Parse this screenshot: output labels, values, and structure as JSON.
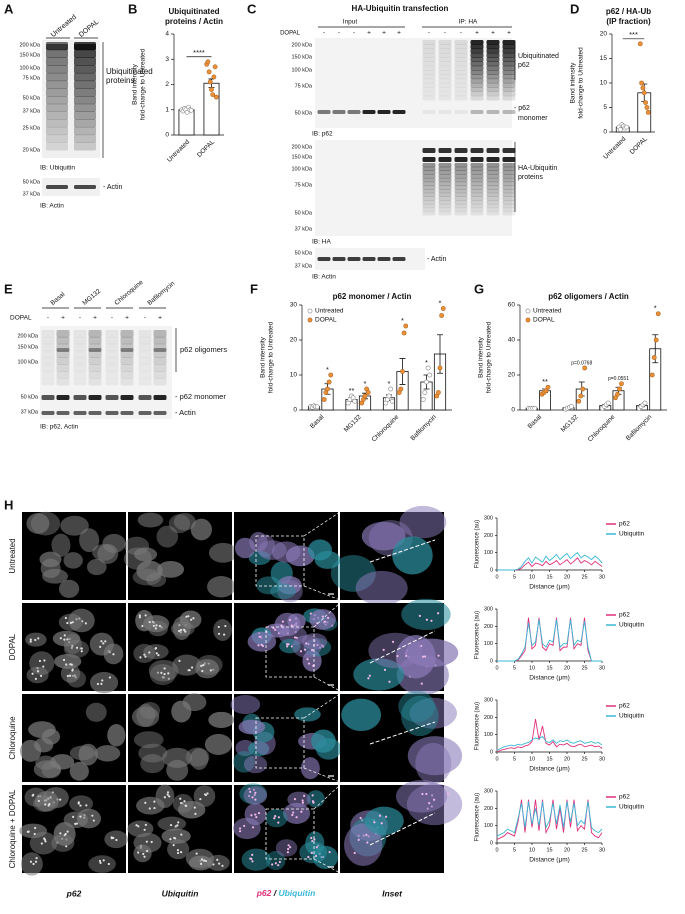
{
  "panels": {
    "A": {
      "letter": "A",
      "lanes": [
        "Untreated",
        "DOPAL"
      ],
      "kda": [
        "200 kDa",
        "150 kDa",
        "100 kDa",
        "75 kDa",
        "50 kDa",
        "37 kDa",
        "25 kDa",
        "20 kDa"
      ],
      "label": [
        "Ubiquitinated",
        "proteins"
      ],
      "ib": "IB: Ubiquitin",
      "actin_kda": [
        "50 kDa",
        "37 kDa"
      ],
      "actin": "- Actin",
      "actin_ib": "IB: Actin"
    },
    "C": {
      "letter": "C",
      "title": "HA-Ubiquitin transfection",
      "input": "Input",
      "ip": "IP: HA",
      "dopal": "DOPAL",
      "signs": [
        "-",
        "-",
        "-",
        "+",
        "+",
        "+",
        "-",
        "-",
        "-",
        "+",
        "+",
        "+"
      ],
      "kda1": [
        "200 kDa",
        "150 kDa",
        "100 kDa",
        "75 kDa",
        "50 kDa"
      ],
      "label1": [
        "Ubiquitinated",
        "p62"
      ],
      "monomer": [
        "- p62",
        "monomer"
      ],
      "ib1": "IB: p62",
      "kda2": [
        "200 kDa",
        "150 kDa",
        "100 kDa",
        "75 kDa",
        "50 kDa",
        "37 kDa"
      ],
      "label2": [
        "HA-Ubiquitin",
        "proteins"
      ],
      "ib2": "IB: HA",
      "kda3": [
        "50 kDa",
        "37 kDa"
      ],
      "actin": "- Actin",
      "ib3": "IB: Actin"
    },
    "E": {
      "letter": "E",
      "groups": [
        "Basal",
        "MG132",
        "Chloroquine",
        "Bafilomycin"
      ],
      "dopal": "DOPAL",
      "signs": [
        "-",
        "+",
        "-",
        "+",
        "-",
        "+",
        "-",
        "+"
      ],
      "kda": [
        "200 kDa",
        "150 kDa",
        "100 kDa",
        "50 kDa",
        "37 kDa"
      ],
      "oligomers": "p62 oligomers",
      "monomer": "- p62 monomer",
      "actin": "- Actin",
      "ib": "IB: p62, Actin"
    },
    "H": {
      "letter": "H",
      "rows": [
        "Untreated",
        "DOPAL",
        "Chloroquine",
        "Chloroquine + DOPAL"
      ],
      "columns": [
        "p62",
        "Ubiquitin"
      ],
      "merge": [
        "p62",
        "/",
        "Ubiquitin"
      ],
      "inset": "Inset"
    }
  },
  "chart_data": [
    {
      "type": "bar",
      "panel": "B",
      "title": [
        "Ubiquitinated",
        "proteins / Actin"
      ],
      "ylabel": [
        "Band intensity",
        "fold-change to Untreated"
      ],
      "categories": [
        "Untreated",
        "DOPAL"
      ],
      "values": [
        1,
        2.05
      ],
      "errors": [
        0.03,
        0.17
      ],
      "points": [
        [
          1,
          0.95,
          1.05,
          1.0,
          0.9,
          1.1,
          1.0,
          0.98
        ],
        [
          2.8,
          2.9,
          2.5,
          2.1,
          1.8,
          1.6,
          2.3,
          2.7,
          1.5
        ]
      ],
      "point_colors": [
        "#ffffff",
        "#e8913a"
      ],
      "bar_color": "#ffffff",
      "significance": "****",
      "ylim": [
        0,
        4
      ],
      "yticks": [
        0,
        1,
        2,
        3,
        4
      ]
    },
    {
      "type": "bar",
      "panel": "D",
      "title": [
        "p62 / HA-Ub",
        "(IP fraction)"
      ],
      "ylabel": [
        "Band intensity",
        "fold-change to Untreated"
      ],
      "categories": [
        "Untreated",
        "DOPAL"
      ],
      "values": [
        1,
        8
      ],
      "errors": [
        0.2,
        1.8
      ],
      "points": [
        [
          1,
          0.5,
          1.5,
          1.2,
          0.8,
          1.0
        ],
        [
          18,
          10,
          9,
          8,
          6,
          5,
          4
        ]
      ],
      "point_colors": [
        "#ffffff",
        "#e8913a"
      ],
      "bar_color": "#ffffff",
      "significance": "***",
      "ylim": [
        0,
        20
      ],
      "yticks": [
        0,
        5,
        10,
        15,
        20
      ]
    },
    {
      "type": "bar",
      "panel": "F",
      "title": "p62 monomer / Actin",
      "ylabel": [
        "Band intensity",
        "fold-change to Untreated"
      ],
      "categories": [
        "Basal",
        "MG132",
        "Chloroquine",
        "Bafilomycin"
      ],
      "bar_color": "#ffffff",
      "legend": "upper left",
      "ylim": [
        0,
        30
      ],
      "yticks": [
        0,
        10,
        20,
        30
      ],
      "series": [
        {
          "name": "Untreated",
          "color": "#ffffff",
          "values": [
            1,
            3,
            3.5,
            8
          ],
          "errors": [
            0.1,
            0.5,
            0.8,
            2
          ],
          "points": [
            [
              1,
              0.8,
              1.2,
              1,
              0.9
            ],
            [
              2,
              3,
              4,
              3.5,
              2.5
            ],
            [
              2,
              3,
              4,
              6,
              2.5
            ],
            [
              3,
              5,
              8,
              12,
              10
            ]
          ],
          "annotations": [
            null,
            "**",
            "*",
            "*"
          ]
        },
        {
          "name": "DOPAL",
          "color": "#e8913a",
          "values": [
            6,
            4,
            11,
            16
          ],
          "errors": [
            1.5,
            0.8,
            3.7,
            5.5
          ],
          "points": [
            [
              3,
              5,
              6,
              8,
              10
            ],
            [
              2,
              3,
              4,
              6,
              5
            ],
            [
              5,
              6,
              11,
              22,
              24
            ],
            [
              4,
              5,
              12,
              27,
              29
            ]
          ],
          "annotations": [
            "*",
            "*",
            "*",
            "*"
          ]
        }
      ]
    },
    {
      "type": "bar",
      "panel": "G",
      "title": "p62 oligomers / Actin",
      "ylabel": [
        "Band intensity",
        "fold-change to Untreated"
      ],
      "categories": [
        "Basal",
        "MG132",
        "Chloroquine",
        "Bafilomycin"
      ],
      "bar_color": "#ffffff",
      "legend": "upper left",
      "ylim": [
        0,
        60
      ],
      "yticks": [
        0,
        20,
        40,
        60
      ],
      "series": [
        {
          "name": "Untreated",
          "color": "#ffffff",
          "values": [
            1,
            1.3,
            2.5,
            2.5
          ],
          "errors": [
            0.1,
            0.3,
            0.7,
            0.6
          ],
          "points": [
            [
              1,
              1,
              1,
              1
            ],
            [
              0.5,
              1,
              1.5,
              2
            ],
            [
              1,
              2,
              3,
              4
            ],
            [
              1,
              2,
              3,
              4
            ]
          ]
        },
        {
          "name": "DOPAL",
          "color": "#e8913a",
          "values": [
            11,
            12,
            11,
            35
          ],
          "errors": [
            1,
            4,
            2,
            8
          ],
          "points": [
            [
              9,
              10,
              11,
              13
            ],
            [
              5,
              8,
              12,
              24
            ],
            [
              7,
              9,
              12,
              15
            ],
            [
              20,
              30,
              40,
              55
            ]
          ],
          "annotations": [
            "**",
            "p=0.0768",
            "p=0.0551",
            "*"
          ]
        }
      ]
    },
    {
      "type": "line",
      "xlabel": "Distance (μm)",
      "ylabel": "Fluorescence (au)",
      "legend": "upper right",
      "xlim": [
        0,
        30
      ],
      "xticks": [
        0,
        5,
        10,
        15,
        20,
        25,
        30
      ],
      "ylim": [
        0,
        300
      ],
      "yticks": [
        0,
        100,
        200,
        300
      ],
      "x": [
        0,
        1,
        2,
        3,
        4,
        5,
        6,
        7,
        8,
        9,
        10,
        11,
        12,
        13,
        14,
        15,
        16,
        17,
        18,
        19,
        20,
        21,
        22,
        23,
        24,
        25,
        26,
        27,
        28,
        29,
        30
      ],
      "series": [
        {
          "name": "p62",
          "color": "#e0307a",
          "values": [
            0,
            0,
            0,
            0,
            0,
            0,
            2,
            10,
            30,
            45,
            20,
            40,
            35,
            25,
            50,
            30,
            40,
            55,
            30,
            45,
            60,
            35,
            50,
            70,
            40,
            55,
            45,
            30,
            50,
            35,
            20
          ]
        },
        {
          "name": "Ubiquitin",
          "color": "#3ab7d6",
          "values": [
            0,
            0,
            0,
            0,
            0,
            0,
            5,
            20,
            50,
            70,
            40,
            75,
            60,
            45,
            80,
            55,
            70,
            90,
            60,
            80,
            95,
            65,
            85,
            100,
            70,
            85,
            75,
            60,
            80,
            65,
            40
          ]
        }
      ]
    },
    {
      "type": "line",
      "xlabel": "Distance (μm)",
      "ylabel": "Fluorescence (au)",
      "legend": "upper right",
      "xlim": [
        0,
        30
      ],
      "xticks": [
        0,
        5,
        10,
        15,
        20,
        25,
        30
      ],
      "ylim": [
        0,
        300
      ],
      "yticks": [
        0,
        100,
        200,
        300
      ],
      "x": [
        0,
        1,
        2,
        3,
        4,
        5,
        6,
        7,
        8,
        9,
        10,
        11,
        12,
        13,
        14,
        15,
        16,
        17,
        18,
        19,
        20,
        21,
        22,
        23,
        24,
        25,
        26,
        27,
        28,
        29,
        30
      ],
      "series": [
        {
          "name": "p62",
          "color": "#e0307a",
          "values": [
            0,
            0,
            0,
            0,
            0,
            0,
            5,
            30,
            60,
            250,
            70,
            90,
            250,
            80,
            60,
            100,
            90,
            250,
            60,
            80,
            80,
            250,
            70,
            100,
            90,
            250,
            60,
            0,
            0,
            0,
            0
          ]
        },
        {
          "name": "Ubiquitin",
          "color": "#3ab7d6",
          "values": [
            0,
            0,
            0,
            0,
            0,
            0,
            10,
            40,
            80,
            220,
            90,
            110,
            240,
            100,
            80,
            120,
            110,
            240,
            80,
            100,
            100,
            240,
            90,
            120,
            110,
            230,
            80,
            0,
            0,
            0,
            0
          ]
        }
      ]
    },
    {
      "type": "line",
      "xlabel": "Distance (μm)",
      "ylabel": "Fluorescence (au)",
      "legend": "upper right",
      "xlim": [
        0,
        30
      ],
      "xticks": [
        0,
        5,
        10,
        15,
        20,
        25,
        30
      ],
      "ylim": [
        0,
        300
      ],
      "yticks": [
        0,
        100,
        200,
        300
      ],
      "x": [
        0,
        1,
        2,
        3,
        4,
        5,
        6,
        7,
        8,
        9,
        10,
        11,
        12,
        13,
        14,
        15,
        16,
        17,
        18,
        19,
        20,
        21,
        22,
        23,
        24,
        25,
        26,
        27,
        28,
        29,
        30
      ],
      "series": [
        {
          "name": "p62",
          "color": "#e0307a",
          "values": [
            0,
            10,
            15,
            20,
            25,
            20,
            30,
            25,
            35,
            40,
            60,
            190,
            70,
            150,
            50,
            40,
            60,
            30,
            45,
            40,
            50,
            35,
            30,
            40,
            45,
            30,
            35,
            40,
            30,
            35,
            20
          ]
        },
        {
          "name": "Ubiquitin",
          "color": "#3ab7d6",
          "values": [
            10,
            20,
            30,
            35,
            40,
            35,
            45,
            40,
            50,
            55,
            70,
            80,
            75,
            90,
            60,
            55,
            70,
            50,
            65,
            60,
            70,
            55,
            50,
            60,
            65,
            50,
            55,
            60,
            50,
            55,
            40
          ]
        }
      ]
    },
    {
      "type": "line",
      "xlabel": "Distance (μm)",
      "ylabel": "Fluorescence (au)",
      "legend": "upper right",
      "xlim": [
        0,
        30
      ],
      "xticks": [
        0,
        5,
        10,
        15,
        20,
        25,
        30
      ],
      "ylim": [
        0,
        300
      ],
      "yticks": [
        0,
        100,
        200,
        300
      ],
      "x": [
        0,
        1,
        2,
        3,
        4,
        5,
        6,
        7,
        8,
        9,
        10,
        11,
        12,
        13,
        14,
        15,
        16,
        17,
        18,
        19,
        20,
        21,
        22,
        23,
        24,
        25,
        26,
        27,
        28,
        29,
        30
      ],
      "series": [
        {
          "name": "p62",
          "color": "#e0307a",
          "values": [
            20,
            30,
            40,
            60,
            50,
            40,
            120,
            250,
            60,
            250,
            90,
            250,
            70,
            250,
            60,
            100,
            250,
            80,
            200,
            60,
            250,
            90,
            250,
            70,
            100,
            80,
            250,
            60,
            40,
            30,
            60
          ]
        },
        {
          "name": "Ubiquitin",
          "color": "#3ab7d6",
          "values": [
            40,
            50,
            60,
            80,
            70,
            60,
            140,
            230,
            90,
            240,
            110,
            200,
            100,
            240,
            90,
            130,
            230,
            110,
            220,
            90,
            240,
            120,
            230,
            100,
            130,
            110,
            240,
            90,
            70,
            60,
            80
          ]
        }
      ]
    }
  ]
}
